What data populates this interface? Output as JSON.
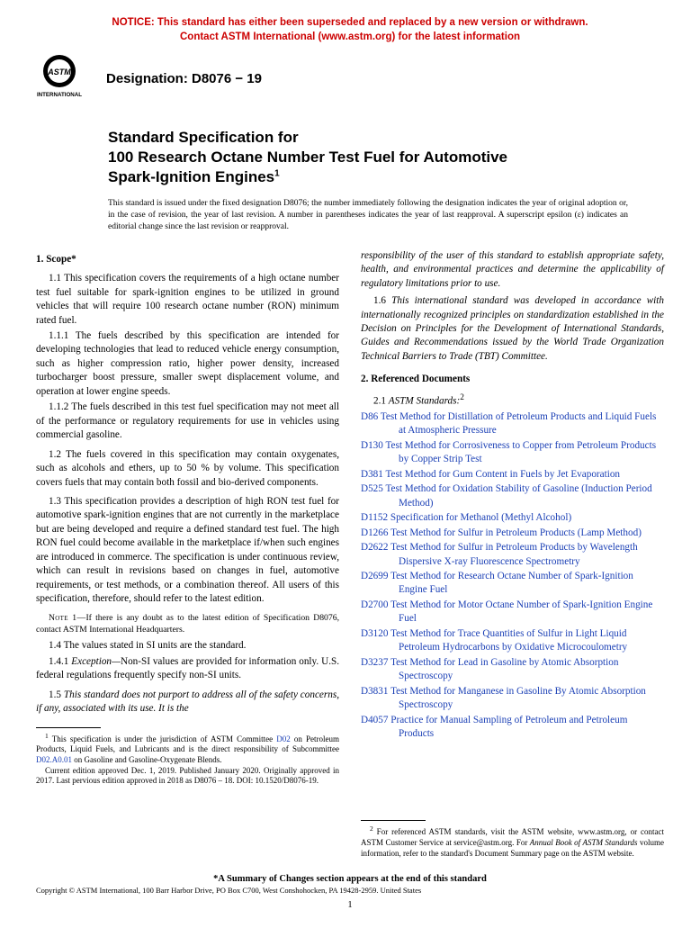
{
  "colors": {
    "notice": "#cc0000",
    "link": "#1a3fb5",
    "text": "#000000"
  },
  "notice": {
    "line1": "NOTICE: This standard has either been superseded and replaced by a new version or withdrawn.",
    "line2": "Contact ASTM International (www.astm.org) for the latest information"
  },
  "logo": {
    "label": "INTERNATIONAL"
  },
  "designation": {
    "label": "Designation: D8076 − 19"
  },
  "title": {
    "line1": "Standard Specification for",
    "line2": "100 Research Octane Number Test Fuel for Automotive",
    "line3": "Spark-Ignition Engines",
    "sup": "1"
  },
  "issuance": "This standard is issued under the fixed designation D8076; the number immediately following the designation indicates the year of original adoption or, in the case of revision, the year of last revision. A number in parentheses indicates the year of last reapproval. A superscript epsilon (ε) indicates an editorial change since the last revision or reapproval.",
  "col1": {
    "h1": "1. Scope*",
    "p1_1": "1.1 This specification covers the requirements of a high octane number test fuel suitable for spark-ignition engines to be utilized in ground vehicles that will require 100 research octane number (RON) minimum rated fuel.",
    "p1_1_1": "1.1.1 The fuels described by this specification are intended for developing technologies that lead to reduced vehicle energy consumption, such as higher compression ratio, higher power density, increased turbocharger boost pressure, smaller swept displacement volume, and operation at lower engine speeds.",
    "p1_1_2": "1.1.2 The fuels described in this test fuel specification may not meet all of the performance or regulatory requirements for use in vehicles using commercial gasoline.",
    "p1_2": "1.2 The fuels covered in this specification may contain oxygenates, such as alcohols and ethers, up to 50 % by volume. This specification covers fuels that may contain both fossil and bio-derived components.",
    "p1_3": "1.3 This specification provides a description of high RON test fuel for automotive spark-ignition engines that are not currently in the marketplace but are being developed and require a defined standard test fuel. The high RON fuel could become available in the marketplace if/when such engines are introduced in commerce. The specification is under continuous review, which can result in revisions based on changes in fuel, automotive requirements, or test methods, or a combination thereof. All users of this specification, therefore, should refer to the latest edition.",
    "note1_label": "Note 1—",
    "note1": "If there is any doubt as to the latest edition of Specification D8076, contact ASTM International Headquarters.",
    "p1_4": "1.4 The values stated in SI units are the standard.",
    "p1_4_1a": "1.4.1 ",
    "p1_4_1b": "Exception—",
    "p1_4_1c": "Non-SI values are provided for information only. U.S. federal regulations frequently specify non-SI units.",
    "p1_5a": "1.5 ",
    "p1_5b": "This standard does not purport to address all of the safety concerns, if any, associated with its use. It is the",
    "fn1_a": " This specification is under the jurisdiction of ASTM Committee ",
    "fn1_link1": "D02",
    "fn1_b": " on Petroleum Products, Liquid Fuels, and Lubricants and is the direct responsibility of Subcommittee ",
    "fn1_link2": "D02.A0.01",
    "fn1_c": " on Gasoline and Gasoline-Oxygenate Blends.",
    "fn1_d": "Current edition approved Dec. 1, 2019. Published January 2020. Originally approved in 2017. Last pervious edition approved in 2018 as D8076 – 18. DOI: 10.1520/D8076-19."
  },
  "col2": {
    "p_cont": "responsibility of the user of this standard to establish appropriate safety, health, and environmental practices and determine the applicability of regulatory limitations prior to use.",
    "p1_6a": "1.6 ",
    "p1_6b": "This international standard was developed in accordance with internationally recognized principles on standardization established in the Decision on Principles for the Development of International Standards, Guides and Recommendations issued by the World Trade Organization Technical Barriers to Trade (TBT) Committee.",
    "h2": "2. Referenced Documents",
    "s2_1a": "2.1 ",
    "s2_1b": "ASTM Standards:",
    "s2_1sup": "2",
    "refs": [
      {
        "code": "D86",
        "title": "Test Method for Distillation of Petroleum Products and Liquid Fuels at Atmospheric Pressure"
      },
      {
        "code": "D130",
        "title": "Test Method for Corrosiveness to Copper from Petroleum Products by Copper Strip Test"
      },
      {
        "code": "D381",
        "title": "Test Method for Gum Content in Fuels by Jet Evaporation"
      },
      {
        "code": "D525",
        "title": "Test Method for Oxidation Stability of Gasoline (Induction Period Method)"
      },
      {
        "code": "D1152",
        "title": "Specification for Methanol (Methyl Alcohol)"
      },
      {
        "code": "D1266",
        "title": "Test Method for Sulfur in Petroleum Products (Lamp Method)"
      },
      {
        "code": "D2622",
        "title": "Test Method for Sulfur in Petroleum Products by Wavelength Dispersive X-ray Fluorescence Spectrometry"
      },
      {
        "code": "D2699",
        "title": "Test Method for Research Octane Number of Spark-Ignition Engine Fuel"
      },
      {
        "code": "D2700",
        "title": "Test Method for Motor Octane Number of Spark-Ignition Engine Fuel"
      },
      {
        "code": "D3120",
        "title": "Test Method for Trace Quantities of Sulfur in Light Liquid Petroleum Hydrocarbons by Oxidative Microcoulometry"
      },
      {
        "code": "D3237",
        "title": "Test Method for Lead in Gasoline by Atomic Absorption Spectroscopy"
      },
      {
        "code": "D3831",
        "title": "Test Method for Manganese in Gasoline By Atomic Absorption Spectroscopy"
      },
      {
        "code": "D4057",
        "title": "Practice for Manual Sampling of Petroleum and Petroleum Products"
      }
    ],
    "fn2_a": " For referenced ASTM standards, visit the ASTM website, www.astm.org, or contact ASTM Customer Service at service@astm.org. For ",
    "fn2_b": "Annual Book of ASTM Standards",
    "fn2_c": " volume information, refer to the standard's Document Summary page on the ASTM website."
  },
  "summary": "*A Summary of Changes section appears at the end of this standard",
  "copyright": "Copyright © ASTM International, 100 Barr Harbor Drive, PO Box C700, West Conshohocken, PA 19428-2959. United States",
  "pagenum": "1"
}
